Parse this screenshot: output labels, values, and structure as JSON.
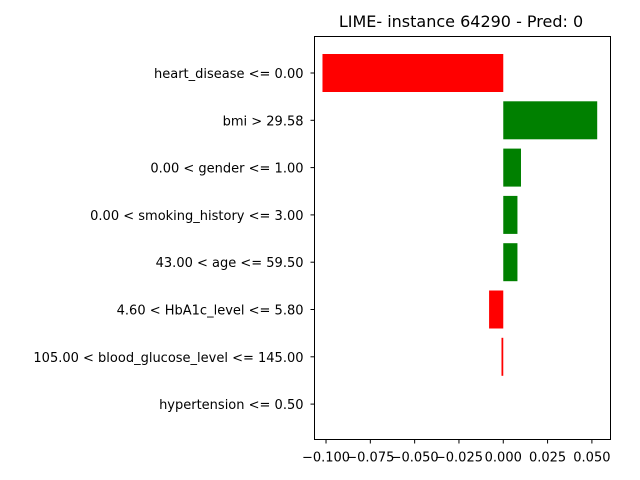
{
  "chart_data": {
    "type": "bar",
    "orientation": "horizontal",
    "title": "LIME- instance 64290 - Pred: 0",
    "xlabel": "",
    "ylabel": "",
    "xlim": [
      -0.1065,
      0.0605
    ],
    "xticks": [
      -0.1,
      -0.075,
      -0.05,
      -0.025,
      0.0,
      0.025,
      0.05
    ],
    "xtick_labels": [
      "−0.100",
      "−0.075",
      "−0.050",
      "−0.025",
      "0.000",
      "0.025",
      "0.050"
    ],
    "grid": false,
    "legend": "none",
    "categories": [
      "heart_disease <= 0.00",
      "bmi > 29.58",
      "0.00 < gender <= 1.00",
      "0.00 < smoking_history <= 3.00",
      "43.00 < age <= 59.50",
      "4.60 < HbA1c_level <= 5.80",
      "105.00 < blood_glucose_level <= 145.00",
      "hypertension <= 0.50"
    ],
    "values": [
      -0.102,
      0.053,
      0.01,
      0.008,
      0.008,
      -0.008,
      -0.001,
      0.0
    ],
    "colors": {
      "positive": "#008000",
      "negative": "#ff0000"
    }
  }
}
